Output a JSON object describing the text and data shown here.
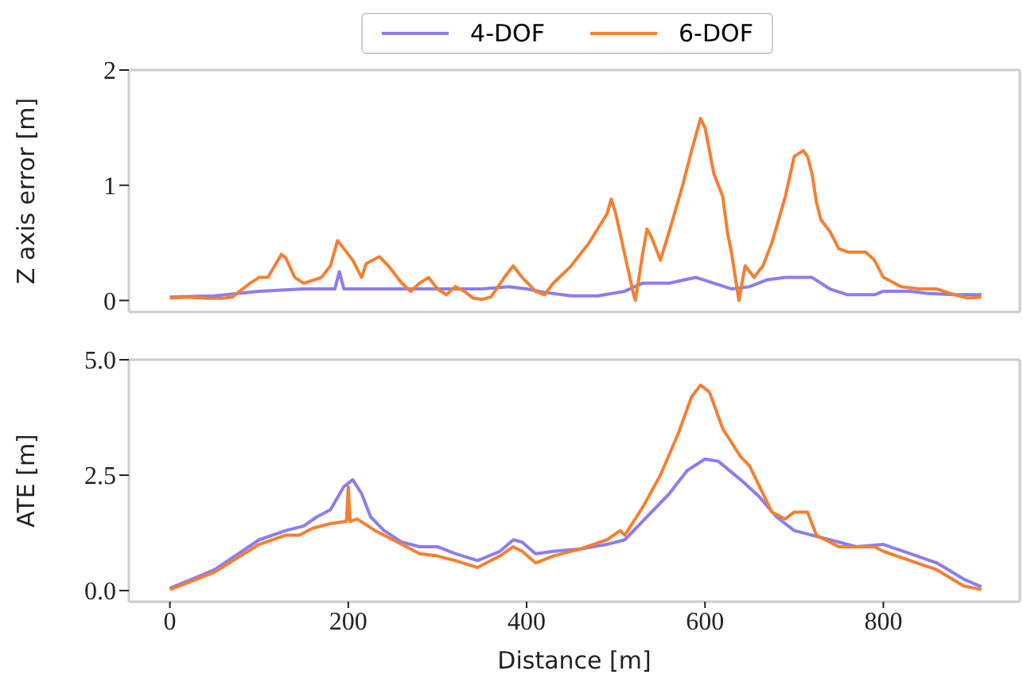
{
  "chart_data": [
    {
      "type": "line",
      "ylabel": "Z axis error [m]",
      "xlim": [
        -46,
        953
      ],
      "xticks": [
        0,
        200,
        400,
        600,
        800
      ],
      "ylim": [
        -0.1,
        2
      ],
      "yticks": [
        0,
        1,
        2
      ],
      "legend": "top",
      "tick_labels": "y",
      "series": [
        {
          "name": "4-DOF",
          "color": "#8c7cf0",
          "x": [
            0,
            50,
            100,
            150,
            185,
            190,
            195,
            200,
            250,
            300,
            350,
            380,
            400,
            420,
            450,
            480,
            510,
            530,
            560,
            590,
            610,
            630,
            650,
            670,
            690,
            720,
            740,
            760,
            790,
            800,
            830,
            850,
            880,
            910
          ],
          "values": [
            0.03,
            0.04,
            0.08,
            0.1,
            0.1,
            0.25,
            0.1,
            0.1,
            0.1,
            0.1,
            0.1,
            0.12,
            0.1,
            0.07,
            0.04,
            0.04,
            0.08,
            0.15,
            0.15,
            0.2,
            0.15,
            0.1,
            0.12,
            0.18,
            0.2,
            0.2,
            0.1,
            0.05,
            0.05,
            0.08,
            0.08,
            0.06,
            0.05,
            0.05
          ]
        },
        {
          "name": "6-DOF",
          "color": "#f57f2f",
          "x": [
            0,
            20,
            40,
            60,
            70,
            90,
            100,
            110,
            125,
            130,
            140,
            150,
            170,
            180,
            188,
            195,
            205,
            215,
            220,
            235,
            245,
            260,
            270,
            280,
            290,
            300,
            310,
            320,
            330,
            340,
            350,
            360,
            375,
            385,
            395,
            410,
            420,
            430,
            450,
            470,
            490,
            495,
            500,
            510,
            520,
            522,
            530,
            535,
            540,
            550,
            560,
            575,
            585,
            595,
            600,
            610,
            620,
            625,
            630,
            638,
            645,
            655,
            665,
            675,
            690,
            700,
            710,
            715,
            720,
            725,
            730,
            740,
            750,
            760,
            780,
            790,
            800,
            820,
            840,
            860,
            880,
            895,
            910
          ],
          "values": [
            0.02,
            0.03,
            0.02,
            0.02,
            0.03,
            0.15,
            0.2,
            0.2,
            0.4,
            0.37,
            0.2,
            0.15,
            0.2,
            0.3,
            0.52,
            0.45,
            0.35,
            0.2,
            0.32,
            0.38,
            0.3,
            0.15,
            0.08,
            0.15,
            0.2,
            0.1,
            0.05,
            0.12,
            0.08,
            0.02,
            0.01,
            0.03,
            0.2,
            0.3,
            0.2,
            0.08,
            0.05,
            0.15,
            0.3,
            0.5,
            0.75,
            0.88,
            0.75,
            0.4,
            0.05,
            0.0,
            0.4,
            0.62,
            0.55,
            0.35,
            0.6,
            1.0,
            1.3,
            1.58,
            1.5,
            1.1,
            0.9,
            0.6,
            0.4,
            0.0,
            0.3,
            0.2,
            0.3,
            0.5,
            0.9,
            1.25,
            1.3,
            1.25,
            1.1,
            0.85,
            0.7,
            0.6,
            0.45,
            0.42,
            0.42,
            0.35,
            0.2,
            0.12,
            0.1,
            0.1,
            0.05,
            0.02,
            0.03
          ]
        }
      ]
    },
    {
      "type": "line",
      "xlabel": "Distance [m]",
      "ylabel": "ATE [m]",
      "xlim": [
        -46,
        953
      ],
      "xticks": [
        0,
        200,
        400,
        600,
        800
      ],
      "ylim": [
        -0.24,
        5
      ],
      "yticks": [
        {
          "value": 0,
          "label": "0.0"
        },
        {
          "value": 2.5,
          "label": "2.5"
        },
        {
          "value": 5,
          "label": "5.0"
        }
      ],
      "series": [
        {
          "color": "#8c7cf0",
          "x": [
            0,
            50,
            100,
            130,
            150,
            165,
            180,
            195,
            205,
            215,
            225,
            240,
            260,
            280,
            300,
            320,
            345,
            370,
            385,
            395,
            410,
            430,
            460,
            490,
            510,
            530,
            560,
            580,
            600,
            615,
            640,
            660,
            680,
            700,
            720,
            740,
            770,
            800,
            830,
            860,
            890,
            910
          ],
          "values": [
            0.05,
            0.45,
            1.1,
            1.3,
            1.4,
            1.6,
            1.75,
            2.25,
            2.4,
            2.1,
            1.6,
            1.3,
            1.05,
            0.95,
            0.95,
            0.8,
            0.65,
            0.85,
            1.1,
            1.05,
            0.8,
            0.85,
            0.9,
            1.0,
            1.1,
            1.5,
            2.1,
            2.6,
            2.85,
            2.8,
            2.4,
            2.05,
            1.6,
            1.3,
            1.2,
            1.1,
            0.95,
            1.0,
            0.8,
            0.6,
            0.25,
            0.08
          ]
        },
        {
          "color": "#f57f2f",
          "x": [
            0,
            50,
            100,
            130,
            145,
            160,
            180,
            198,
            200,
            202,
            210,
            230,
            260,
            280,
            300,
            320,
            345,
            370,
            385,
            395,
            410,
            430,
            460,
            490,
            505,
            510,
            530,
            550,
            570,
            585,
            595,
            605,
            620,
            640,
            650,
            660,
            675,
            690,
            700,
            715,
            725,
            750,
            790,
            800,
            830,
            860,
            890,
            910
          ],
          "values": [
            0.02,
            0.4,
            1.0,
            1.2,
            1.2,
            1.35,
            1.45,
            1.5,
            2.25,
            1.5,
            1.55,
            1.3,
            1.0,
            0.8,
            0.75,
            0.65,
            0.5,
            0.75,
            0.95,
            0.85,
            0.6,
            0.75,
            0.9,
            1.1,
            1.3,
            1.2,
            1.8,
            2.5,
            3.4,
            4.2,
            4.45,
            4.3,
            3.5,
            2.9,
            2.7,
            2.3,
            1.7,
            1.55,
            1.7,
            1.7,
            1.2,
            0.95,
            0.95,
            0.85,
            0.65,
            0.45,
            0.1,
            0.02
          ]
        }
      ]
    }
  ]
}
